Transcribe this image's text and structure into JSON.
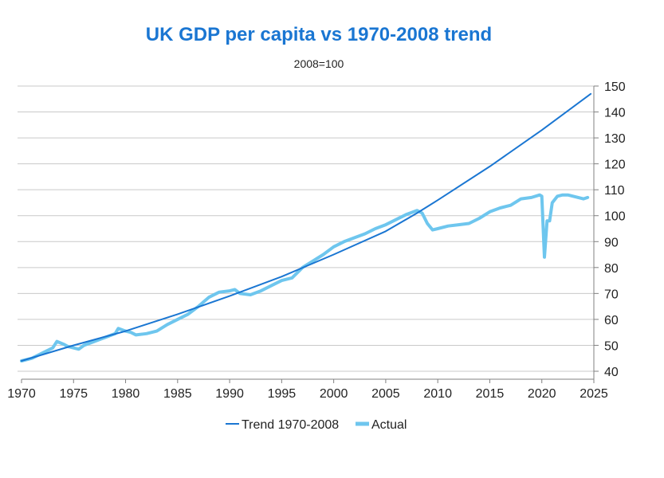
{
  "colors": {
    "title": "#1a76d2",
    "trend": "#1a76d2",
    "actual": "#6ec6ee",
    "grid": "#c9c9c9",
    "axis": "#808080"
  },
  "chart_data": {
    "type": "line",
    "title": "UK GDP per capita vs 1970-2008 trend",
    "subtitle": "2008=100",
    "xlabel": "",
    "ylabel": "",
    "xlim": [
      1970,
      2025
    ],
    "ylim": [
      40,
      150
    ],
    "x_ticks": [
      "1970",
      "1975",
      "1980",
      "1985",
      "1990",
      "1995",
      "2000",
      "2005",
      "2010",
      "2015",
      "2020",
      "2025"
    ],
    "y_ticks": [
      "40",
      "50",
      "60",
      "70",
      "80",
      "90",
      "100",
      "110",
      "120",
      "130",
      "140",
      "150"
    ],
    "y_axis_side": "right",
    "grid": true,
    "legend_position": "bottom",
    "series": [
      {
        "name": "Trend 1970-2008",
        "x": [
          1970,
          1975,
          1980,
          1985,
          1990,
          1995,
          2000,
          2005,
          2008,
          2010,
          2015,
          2020,
          2024.7
        ],
        "values": [
          44,
          50,
          55.5,
          62,
          69,
          76.5,
          85,
          94,
          101,
          106,
          119,
          133,
          147
        ]
      },
      {
        "name": "Actual",
        "x": [
          1970,
          1971,
          1972,
          1973,
          1973.4,
          1974,
          1974.5,
          1975,
          1975.5,
          1976,
          1977,
          1978,
          1979,
          1979.3,
          1980,
          1980.5,
          1981,
          1982,
          1983,
          1984,
          1985,
          1986,
          1987,
          1988,
          1989,
          1990,
          1990.5,
          1991,
          1992,
          1993,
          1994,
          1995,
          1996,
          1997,
          1998,
          1999,
          2000,
          2001,
          2002,
          2003,
          2004,
          2005,
          2006,
          2007,
          2008,
          2008.5,
          2009,
          2009.5,
          2010,
          2011,
          2012,
          2013,
          2014,
          2015,
          2016,
          2017,
          2018,
          2019,
          2019.8,
          2020.0,
          2020.25,
          2020.5,
          2020.75,
          2021,
          2021.5,
          2022,
          2022.5,
          2023,
          2023.5,
          2024,
          2024.4
        ],
        "values": [
          44,
          45,
          47,
          49,
          51.5,
          50.5,
          49.5,
          49,
          48.5,
          50,
          51.5,
          53,
          54.5,
          56.5,
          55.5,
          55,
          54,
          54.5,
          55.5,
          58,
          60,
          62,
          65,
          68.5,
          70.5,
          71,
          71.5,
          70,
          69.5,
          71,
          73,
          75,
          76,
          80,
          82.5,
          85,
          88,
          90,
          91.5,
          93,
          95,
          96.5,
          98.5,
          100.5,
          102,
          101,
          97,
          94.5,
          95,
          96,
          96.5,
          97,
          99,
          101.5,
          103,
          104,
          106.5,
          107,
          108,
          107.5,
          84,
          98,
          98,
          105,
          107.5,
          108,
          108,
          107.5,
          107,
          106.5,
          107
        ]
      }
    ]
  }
}
